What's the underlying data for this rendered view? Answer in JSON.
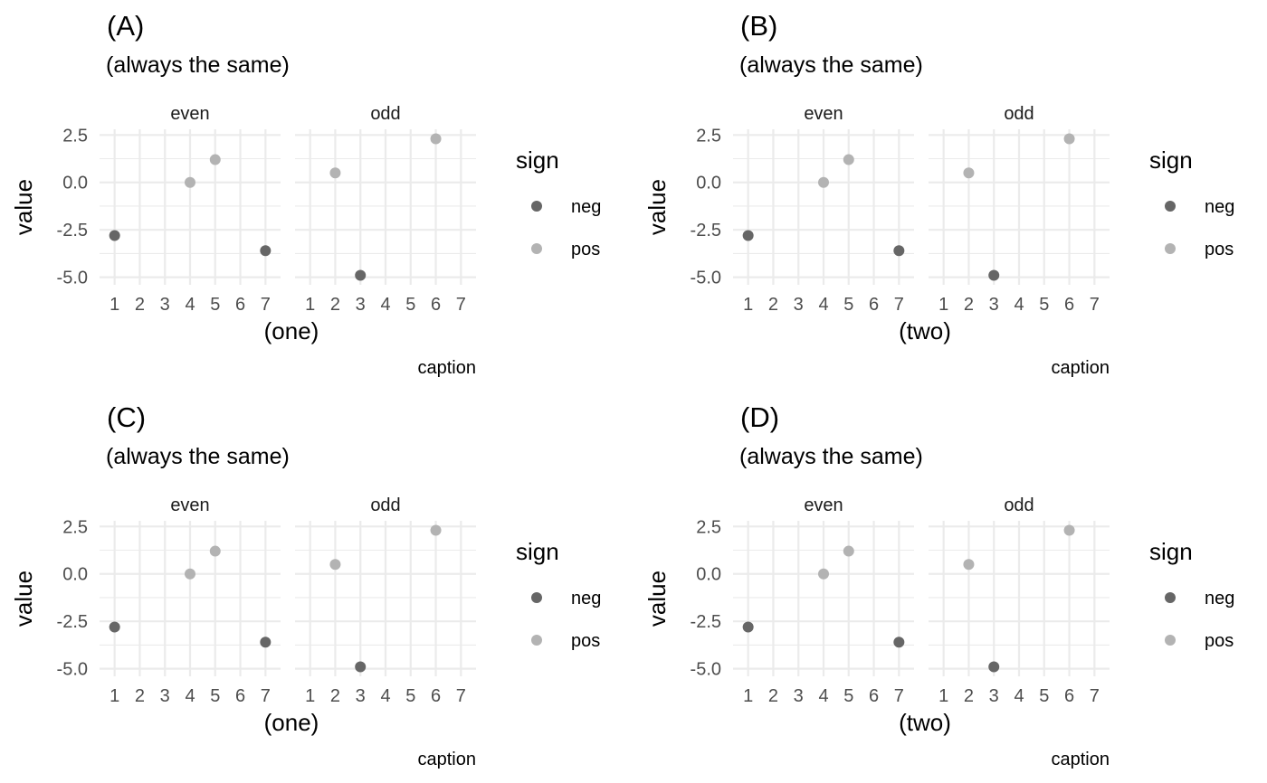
{
  "chart_data": [
    {
      "type": "scatter",
      "tag": "(A)",
      "subtitle": "(always the same)",
      "xlabel": "(one)",
      "ylabel": "value",
      "caption": "caption",
      "facets": [
        "even",
        "odd"
      ],
      "x_ticks": [
        "1",
        "2",
        "3",
        "4",
        "5",
        "6",
        "7"
      ],
      "y_ticks": [
        "2.5",
        "0.0",
        "-2.5",
        "-5.0"
      ],
      "xlim": [
        0.4,
        7.6
      ],
      "ylim": [
        -5.4,
        2.8
      ],
      "legend": {
        "title": "sign",
        "position": "right",
        "entries": [
          {
            "label": "neg",
            "color": "#666666"
          },
          {
            "label": "pos",
            "color": "#b3b3b3"
          }
        ]
      },
      "points": [
        {
          "facet": "even",
          "x": 1,
          "y": -2.8,
          "sign": "neg"
        },
        {
          "facet": "even",
          "x": 4,
          "y": 0.0,
          "sign": "pos"
        },
        {
          "facet": "even",
          "x": 5,
          "y": 1.2,
          "sign": "pos"
        },
        {
          "facet": "even",
          "x": 7,
          "y": -3.6,
          "sign": "neg"
        },
        {
          "facet": "odd",
          "x": 2,
          "y": 0.5,
          "sign": "pos"
        },
        {
          "facet": "odd",
          "x": 3,
          "y": -4.9,
          "sign": "neg"
        },
        {
          "facet": "odd",
          "x": 6,
          "y": 2.3,
          "sign": "pos"
        }
      ]
    },
    {
      "type": "scatter",
      "tag": "(B)",
      "subtitle": "(always the same)",
      "xlabel": "(two)",
      "ylabel": "value",
      "caption": "caption",
      "facets": [
        "even",
        "odd"
      ],
      "x_ticks": [
        "1",
        "2",
        "3",
        "4",
        "5",
        "6",
        "7"
      ],
      "y_ticks": [
        "2.5",
        "0.0",
        "-2.5",
        "-5.0"
      ],
      "xlim": [
        0.4,
        7.6
      ],
      "ylim": [
        -5.4,
        2.8
      ],
      "legend": {
        "title": "sign",
        "position": "right",
        "entries": [
          {
            "label": "neg",
            "color": "#666666"
          },
          {
            "label": "pos",
            "color": "#b3b3b3"
          }
        ]
      },
      "points": [
        {
          "facet": "even",
          "x": 1,
          "y": -2.8,
          "sign": "neg"
        },
        {
          "facet": "even",
          "x": 4,
          "y": 0.0,
          "sign": "pos"
        },
        {
          "facet": "even",
          "x": 5,
          "y": 1.2,
          "sign": "pos"
        },
        {
          "facet": "even",
          "x": 7,
          "y": -3.6,
          "sign": "neg"
        },
        {
          "facet": "odd",
          "x": 2,
          "y": 0.5,
          "sign": "pos"
        },
        {
          "facet": "odd",
          "x": 3,
          "y": -4.9,
          "sign": "neg"
        },
        {
          "facet": "odd",
          "x": 6,
          "y": 2.3,
          "sign": "pos"
        }
      ]
    },
    {
      "type": "scatter",
      "tag": "(C)",
      "subtitle": "(always the same)",
      "xlabel": "(one)",
      "ylabel": "value",
      "caption": "caption",
      "facets": [
        "even",
        "odd"
      ],
      "x_ticks": [
        "1",
        "2",
        "3",
        "4",
        "5",
        "6",
        "7"
      ],
      "y_ticks": [
        "2.5",
        "0.0",
        "-2.5",
        "-5.0"
      ],
      "xlim": [
        0.4,
        7.6
      ],
      "ylim": [
        -5.4,
        2.8
      ],
      "legend": {
        "title": "sign",
        "position": "right",
        "entries": [
          {
            "label": "neg",
            "color": "#666666"
          },
          {
            "label": "pos",
            "color": "#b3b3b3"
          }
        ]
      },
      "points": [
        {
          "facet": "even",
          "x": 1,
          "y": -2.8,
          "sign": "neg"
        },
        {
          "facet": "even",
          "x": 4,
          "y": 0.0,
          "sign": "pos"
        },
        {
          "facet": "even",
          "x": 5,
          "y": 1.2,
          "sign": "pos"
        },
        {
          "facet": "even",
          "x": 7,
          "y": -3.6,
          "sign": "neg"
        },
        {
          "facet": "odd",
          "x": 2,
          "y": 0.5,
          "sign": "pos"
        },
        {
          "facet": "odd",
          "x": 3,
          "y": -4.9,
          "sign": "neg"
        },
        {
          "facet": "odd",
          "x": 6,
          "y": 2.3,
          "sign": "pos"
        }
      ]
    },
    {
      "type": "scatter",
      "tag": "(D)",
      "subtitle": "(always the same)",
      "xlabel": "(two)",
      "ylabel": "value",
      "caption": "caption",
      "facets": [
        "even",
        "odd"
      ],
      "x_ticks": [
        "1",
        "2",
        "3",
        "4",
        "5",
        "6",
        "7"
      ],
      "y_ticks": [
        "2.5",
        "0.0",
        "-2.5",
        "-5.0"
      ],
      "xlim": [
        0.4,
        7.6
      ],
      "ylim": [
        -5.4,
        2.8
      ],
      "legend": {
        "title": "sign",
        "position": "right",
        "entries": [
          {
            "label": "neg",
            "color": "#666666"
          },
          {
            "label": "pos",
            "color": "#b3b3b3"
          }
        ]
      },
      "points": [
        {
          "facet": "even",
          "x": 1,
          "y": -2.8,
          "sign": "neg"
        },
        {
          "facet": "even",
          "x": 4,
          "y": 0.0,
          "sign": "pos"
        },
        {
          "facet": "even",
          "x": 5,
          "y": 1.2,
          "sign": "pos"
        },
        {
          "facet": "even",
          "x": 7,
          "y": -3.6,
          "sign": "neg"
        },
        {
          "facet": "odd",
          "x": 2,
          "y": 0.5,
          "sign": "pos"
        },
        {
          "facet": "odd",
          "x": 3,
          "y": -4.9,
          "sign": "neg"
        },
        {
          "facet": "odd",
          "x": 6,
          "y": 2.3,
          "sign": "pos"
        }
      ]
    }
  ]
}
